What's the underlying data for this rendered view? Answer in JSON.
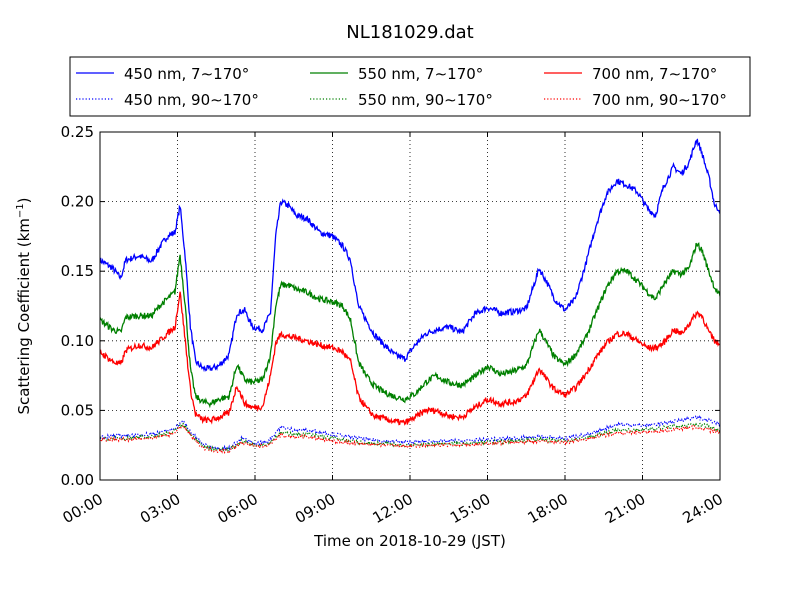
{
  "chart_data": {
    "type": "line",
    "title": "NL181029.dat",
    "xlabel": "Time on 2018-10-29 (JST)",
    "ylabel": "Scattering Coefficient (km",
    "ylabel_superscript": "−1",
    "ylabel_close": ")",
    "xlim": [
      0,
      24
    ],
    "ylim": [
      0,
      0.25
    ],
    "grid": true,
    "legend_position": "top",
    "x_ticks": [
      {
        "value": 0,
        "label": "00:00"
      },
      {
        "value": 3,
        "label": "03:00"
      },
      {
        "value": 6,
        "label": "06:00"
      },
      {
        "value": 9,
        "label": "09:00"
      },
      {
        "value": 12,
        "label": "12:00"
      },
      {
        "value": 15,
        "label": "15:00"
      },
      {
        "value": 18,
        "label": "18:00"
      },
      {
        "value": 21,
        "label": "21:00"
      },
      {
        "value": 24,
        "label": "24:00"
      }
    ],
    "y_ticks": [
      {
        "value": 0.0,
        "label": "0.00"
      },
      {
        "value": 0.05,
        "label": "0.05"
      },
      {
        "value": 0.1,
        "label": "0.10"
      },
      {
        "value": 0.15,
        "label": "0.15"
      },
      {
        "value": 0.2,
        "label": "0.20"
      },
      {
        "value": 0.25,
        "label": "0.25"
      }
    ],
    "series": [
      {
        "name": "450 nm, 7∼170°",
        "color": "#0000ff",
        "style": "solid",
        "x": [
          0,
          0.5,
          0.8,
          1,
          1.5,
          2,
          2.3,
          2.6,
          2.9,
          3.1,
          3.3,
          3.5,
          3.7,
          4,
          4.3,
          4.6,
          5,
          5.3,
          5.6,
          5.9,
          6.3,
          6.6,
          6.8,
          7,
          7.3,
          7.6,
          8,
          8.5,
          9,
          9.4,
          9.7,
          10,
          10.3,
          10.6,
          11,
          11.4,
          11.8,
          12.2,
          12.6,
          13,
          13.5,
          14,
          14.5,
          15,
          15.5,
          16,
          16.5,
          17,
          17.3,
          17.6,
          18,
          18.4,
          18.8,
          19.2,
          19.6,
          20,
          20.4,
          20.8,
          21.2,
          21.5,
          21.8,
          22.2,
          22.5,
          22.8,
          23.1,
          23.3,
          23.6,
          23.8,
          24
        ],
        "y": [
          0.158,
          0.152,
          0.145,
          0.158,
          0.161,
          0.157,
          0.167,
          0.175,
          0.178,
          0.197,
          0.16,
          0.11,
          0.085,
          0.08,
          0.08,
          0.082,
          0.09,
          0.12,
          0.122,
          0.11,
          0.108,
          0.12,
          0.175,
          0.2,
          0.197,
          0.19,
          0.188,
          0.178,
          0.175,
          0.168,
          0.158,
          0.125,
          0.115,
          0.105,
          0.097,
          0.09,
          0.087,
          0.097,
          0.105,
          0.108,
          0.11,
          0.106,
          0.119,
          0.124,
          0.12,
          0.121,
          0.123,
          0.152,
          0.142,
          0.13,
          0.122,
          0.13,
          0.155,
          0.183,
          0.205,
          0.215,
          0.212,
          0.207,
          0.195,
          0.19,
          0.21,
          0.225,
          0.22,
          0.228,
          0.245,
          0.235,
          0.215,
          0.197,
          0.194
        ]
      },
      {
        "name": "550 nm, 7∼170°",
        "color": "#008000",
        "style": "solid",
        "x": [
          0,
          0.5,
          0.8,
          1,
          1.5,
          2,
          2.3,
          2.6,
          2.9,
          3.1,
          3.3,
          3.5,
          3.7,
          4,
          4.3,
          4.6,
          5,
          5.3,
          5.6,
          5.9,
          6.3,
          6.6,
          6.8,
          7,
          7.3,
          7.6,
          8,
          8.5,
          9,
          9.4,
          9.7,
          10,
          10.3,
          10.6,
          11,
          11.4,
          11.8,
          12.2,
          12.6,
          13,
          13.5,
          14,
          14.5,
          15,
          15.5,
          16,
          16.5,
          17,
          17.3,
          17.6,
          18,
          18.4,
          18.8,
          19.2,
          19.6,
          20,
          20.4,
          20.8,
          21.2,
          21.5,
          21.8,
          22.2,
          22.5,
          22.8,
          23.1,
          23.3,
          23.6,
          23.8,
          24
        ],
        "y": [
          0.115,
          0.108,
          0.106,
          0.117,
          0.118,
          0.118,
          0.125,
          0.13,
          0.135,
          0.162,
          0.125,
          0.08,
          0.06,
          0.056,
          0.055,
          0.058,
          0.06,
          0.083,
          0.072,
          0.07,
          0.072,
          0.09,
          0.125,
          0.14,
          0.14,
          0.137,
          0.135,
          0.13,
          0.128,
          0.125,
          0.115,
          0.085,
          0.075,
          0.068,
          0.063,
          0.06,
          0.058,
          0.062,
          0.07,
          0.075,
          0.07,
          0.068,
          0.074,
          0.082,
          0.076,
          0.078,
          0.082,
          0.108,
          0.098,
          0.088,
          0.083,
          0.09,
          0.102,
          0.12,
          0.138,
          0.15,
          0.15,
          0.143,
          0.135,
          0.13,
          0.14,
          0.15,
          0.148,
          0.152,
          0.17,
          0.165,
          0.148,
          0.138,
          0.132
        ]
      },
      {
        "name": "700 nm, 7∼170°",
        "color": "#ff0000",
        "style": "solid",
        "x": [
          0,
          0.5,
          0.8,
          1,
          1.5,
          2,
          2.3,
          2.6,
          2.9,
          3.1,
          3.3,
          3.5,
          3.7,
          4,
          4.3,
          4.6,
          5,
          5.3,
          5.6,
          5.9,
          6.3,
          6.6,
          6.8,
          7,
          7.3,
          7.6,
          8,
          8.5,
          9,
          9.4,
          9.7,
          10,
          10.3,
          10.6,
          11,
          11.4,
          11.8,
          12.2,
          12.6,
          13,
          13.5,
          14,
          14.5,
          15,
          15.5,
          16,
          16.5,
          17,
          17.3,
          17.6,
          18,
          18.4,
          18.8,
          19.2,
          19.6,
          20,
          20.4,
          20.8,
          21.2,
          21.5,
          21.8,
          22.2,
          22.5,
          22.8,
          23.1,
          23.3,
          23.6,
          23.8,
          24
        ],
        "y": [
          0.092,
          0.085,
          0.083,
          0.093,
          0.097,
          0.095,
          0.1,
          0.105,
          0.11,
          0.135,
          0.1,
          0.065,
          0.047,
          0.043,
          0.043,
          0.045,
          0.048,
          0.068,
          0.055,
          0.052,
          0.053,
          0.075,
          0.098,
          0.105,
          0.103,
          0.102,
          0.1,
          0.097,
          0.095,
          0.092,
          0.085,
          0.06,
          0.052,
          0.046,
          0.044,
          0.042,
          0.041,
          0.045,
          0.05,
          0.05,
          0.046,
          0.045,
          0.052,
          0.058,
          0.055,
          0.056,
          0.06,
          0.08,
          0.072,
          0.065,
          0.061,
          0.066,
          0.076,
          0.088,
          0.098,
          0.105,
          0.105,
          0.1,
          0.095,
          0.095,
          0.098,
          0.108,
          0.105,
          0.112,
          0.12,
          0.118,
          0.105,
          0.1,
          0.097
        ]
      },
      {
        "name": "450 nm, 90∼170°",
        "color": "#0000ff",
        "style": "dotted",
        "x": [
          0,
          1,
          2,
          2.8,
          3.2,
          3.6,
          4,
          4.5,
          5,
          5.5,
          6,
          6.5,
          7,
          7.5,
          8,
          9,
          10,
          11,
          12,
          13,
          14,
          15,
          16,
          17,
          18,
          19,
          20,
          21,
          22,
          23,
          23.5,
          24
        ],
        "y": [
          0.031,
          0.032,
          0.033,
          0.036,
          0.042,
          0.033,
          0.025,
          0.023,
          0.023,
          0.03,
          0.026,
          0.028,
          0.038,
          0.036,
          0.036,
          0.033,
          0.03,
          0.028,
          0.027,
          0.028,
          0.028,
          0.029,
          0.03,
          0.031,
          0.03,
          0.033,
          0.04,
          0.039,
          0.041,
          0.045,
          0.043,
          0.04
        ]
      },
      {
        "name": "550 nm, 90∼170°",
        "color": "#008000",
        "style": "dotted",
        "x": [
          0,
          1,
          2,
          2.8,
          3.2,
          3.6,
          4,
          4.5,
          5,
          5.5,
          6,
          6.5,
          7,
          7.5,
          8,
          9,
          10,
          11,
          12,
          13,
          14,
          15,
          16,
          17,
          18,
          19,
          20,
          21,
          22,
          23,
          23.5,
          24
        ],
        "y": [
          0.03,
          0.03,
          0.031,
          0.034,
          0.04,
          0.031,
          0.024,
          0.022,
          0.022,
          0.028,
          0.025,
          0.026,
          0.034,
          0.033,
          0.033,
          0.03,
          0.027,
          0.026,
          0.025,
          0.026,
          0.026,
          0.027,
          0.028,
          0.029,
          0.028,
          0.031,
          0.036,
          0.036,
          0.038,
          0.04,
          0.039,
          0.036
        ]
      },
      {
        "name": "700 nm, 90∼170°",
        "color": "#ff0000",
        "style": "dotted",
        "x": [
          0,
          1,
          2,
          2.8,
          3.2,
          3.6,
          4,
          4.5,
          5,
          5.5,
          6,
          6.5,
          7,
          7.5,
          8,
          9,
          10,
          11,
          12,
          13,
          14,
          15,
          16,
          17,
          18,
          19,
          20,
          21,
          22,
          23,
          23.5,
          24
        ],
        "y": [
          0.029,
          0.029,
          0.03,
          0.033,
          0.039,
          0.03,
          0.023,
          0.021,
          0.021,
          0.027,
          0.024,
          0.025,
          0.032,
          0.031,
          0.031,
          0.028,
          0.026,
          0.025,
          0.024,
          0.025,
          0.025,
          0.026,
          0.027,
          0.028,
          0.027,
          0.03,
          0.034,
          0.034,
          0.036,
          0.038,
          0.036,
          0.034
        ]
      }
    ]
  }
}
